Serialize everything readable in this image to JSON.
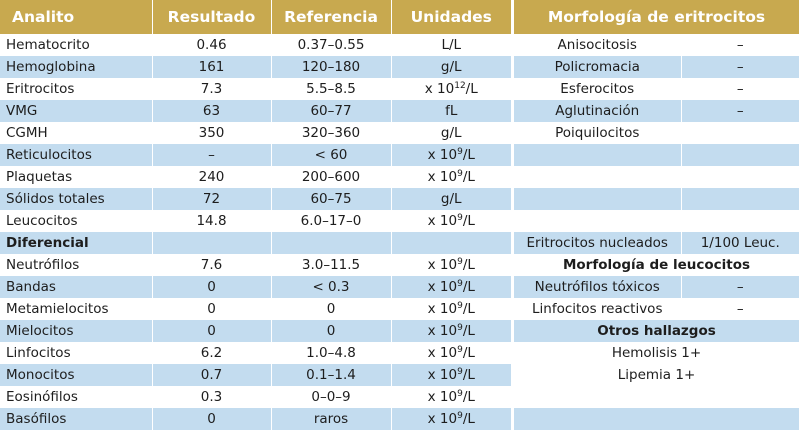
{
  "colors": {
    "header_bg": "#c8a94f",
    "stripe_bg": "#c3dcef",
    "white": "#ffffff"
  },
  "left_table": {
    "headers": [
      "Analito",
      "Resultado",
      "Referencia",
      "Unidades"
    ],
    "rows": [
      {
        "analito": "Hematocrito",
        "resultado": "0.46",
        "referencia": "0.37–0.55",
        "unidades": "L/L",
        "sup": ""
      },
      {
        "analito": "Hemoglobina",
        "resultado": "161",
        "referencia": "120–180",
        "unidades": "g/L",
        "sup": ""
      },
      {
        "analito": "Eritrocitos",
        "resultado": "7.3",
        "referencia": "5.5–8.5",
        "unidades": "x 10",
        "sup": "12",
        "unit_suffix": "/L"
      },
      {
        "analito": "VMG",
        "resultado": "63",
        "referencia": "60–77",
        "unidades": "fL",
        "sup": ""
      },
      {
        "analito": "CGMH",
        "resultado": "350",
        "referencia": "320–360",
        "unidades": "g/L",
        "sup": ""
      },
      {
        "analito": "Reticulocitos",
        "resultado": "–",
        "referencia": "< 60",
        "unidades": "x 10",
        "sup": "9",
        "unit_suffix": "/L"
      },
      {
        "analito": "Plaquetas",
        "resultado": "240",
        "referencia": "200–600",
        "unidades": "x 10",
        "sup": "9",
        "unit_suffix": "/L"
      },
      {
        "analito": "Sólidos totales",
        "resultado": "72",
        "referencia": "60–75",
        "unidades": "g/L",
        "sup": ""
      },
      {
        "analito": "Leucocitos",
        "resultado": "14.8",
        "referencia": "6.0–17–0",
        "unidades": "x 10",
        "sup": "9",
        "unit_suffix": "/L"
      },
      {
        "analito": "Diferencial",
        "resultado": "",
        "referencia": "",
        "unidades": "",
        "sup": "",
        "bold": true
      },
      {
        "analito": "Neutrófilos",
        "resultado": "7.6",
        "referencia": "3.0–11.5",
        "unidades": "x 10",
        "sup": "9",
        "unit_suffix": "/L"
      },
      {
        "analito": "Bandas",
        "resultado": "0",
        "referencia": "< 0.3",
        "unidades": "x 10",
        "sup": "9",
        "unit_suffix": "/L"
      },
      {
        "analito": "Metamielocitos",
        "resultado": "0",
        "referencia": "0",
        "unidades": "x 10",
        "sup": "9",
        "unit_suffix": "/L"
      },
      {
        "analito": "Mielocitos",
        "resultado": "0",
        "referencia": "0",
        "unidades": "x 10",
        "sup": "9",
        "unit_suffix": "/L"
      },
      {
        "analito": "Linfocitos",
        "resultado": "6.2",
        "referencia": "1.0–4.8",
        "unidades": "x 10",
        "sup": "9",
        "unit_suffix": "/L"
      },
      {
        "analito": "Monocitos",
        "resultado": "0.7",
        "referencia": "0.1–1.4",
        "unidades": "x 10",
        "sup": "9",
        "unit_suffix": "/L"
      },
      {
        "analito": "Eosinófilos",
        "resultado": "0.3",
        "referencia": "0–0–9",
        "unidades": "x 10",
        "sup": "9",
        "unit_suffix": "/L"
      },
      {
        "analito": "Basófilos",
        "resultado": "0",
        "referencia": "raros",
        "unidades": "x 10",
        "sup": "9",
        "unit_suffix": "/L"
      }
    ]
  },
  "right_table": {
    "header": "Morfología de eritrocitos",
    "rows": [
      {
        "label": "Anisocitosis",
        "value": "–"
      },
      {
        "label": "Policromacia",
        "value": "–"
      },
      {
        "label": "Esferocitos",
        "value": "–"
      },
      {
        "label": "Aglutinación",
        "value": "–"
      },
      {
        "label": "Poiquilocitos",
        "value": ""
      },
      {
        "label": "",
        "value": ""
      },
      {
        "label": "",
        "value": ""
      },
      {
        "label": "",
        "value": ""
      },
      {
        "label": "",
        "value": ""
      },
      {
        "label": "Eritrocitos nucleados",
        "value": "1/100 Leuc."
      },
      {
        "label": "Morfología de leucocitos",
        "value": "",
        "span": true,
        "bold": true
      },
      {
        "label": "Neutrófilos tóxicos",
        "value": "–"
      },
      {
        "label": "Linfocitos reactivos",
        "value": "–"
      },
      {
        "label": "Otros hallazgos",
        "value": "",
        "span": true,
        "bold": true
      },
      {
        "label": "Hemolisis 1+",
        "value": "",
        "span": true
      },
      {
        "label": "Lipemia 1+",
        "value": "",
        "span": true
      },
      {
        "label": "",
        "value": "",
        "span": true
      },
      {
        "label": "",
        "value": "",
        "span": true
      }
    ]
  }
}
